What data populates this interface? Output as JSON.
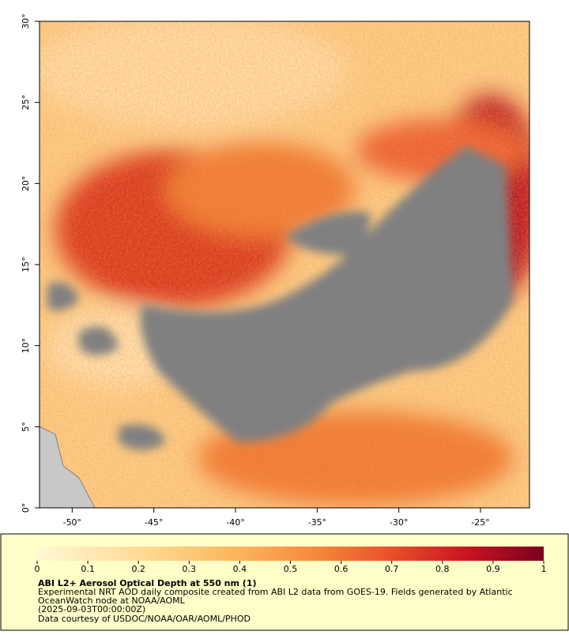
{
  "map": {
    "xlim": [
      -52,
      -22
    ],
    "ylim": [
      0,
      30
    ],
    "xticks": [
      {
        "value": -50,
        "label": "-50°"
      },
      {
        "value": -45,
        "label": "-45°"
      },
      {
        "value": -40,
        "label": "-40°"
      },
      {
        "value": -35,
        "label": "-35°"
      },
      {
        "value": -30,
        "label": "-30°"
      },
      {
        "value": -25,
        "label": "-25°"
      }
    ],
    "yticks": [
      {
        "value": 0,
        "label": "0°"
      },
      {
        "value": 5,
        "label": "5°"
      },
      {
        "value": 10,
        "label": "10°"
      },
      {
        "value": 15,
        "label": "15°"
      },
      {
        "value": 20,
        "label": "20°"
      },
      {
        "value": 25,
        "label": "25°"
      },
      {
        "value": 30,
        "label": "30°"
      }
    ]
  },
  "colorbar": {
    "lim": [
      0,
      1
    ],
    "ticks": [
      0,
      0.1,
      0.2,
      0.3,
      0.4,
      0.5,
      0.6,
      0.7,
      0.8,
      0.9,
      1
    ]
  },
  "caption": {
    "title": "ABI L2+ Aerosol Optical Depth at 550 nm (1)",
    "lines": [
      "Experimental NRT AOD daily composite created from ABI L2 data from GOES-19. Fields generated by Atlantic",
      "OceanWatch node at NOAA/AOML",
      "(2025-09-03T00:00:00Z)",
      "Data courtesy of USDOC/NOAA/OAR/AOML/PHOD"
    ]
  }
}
